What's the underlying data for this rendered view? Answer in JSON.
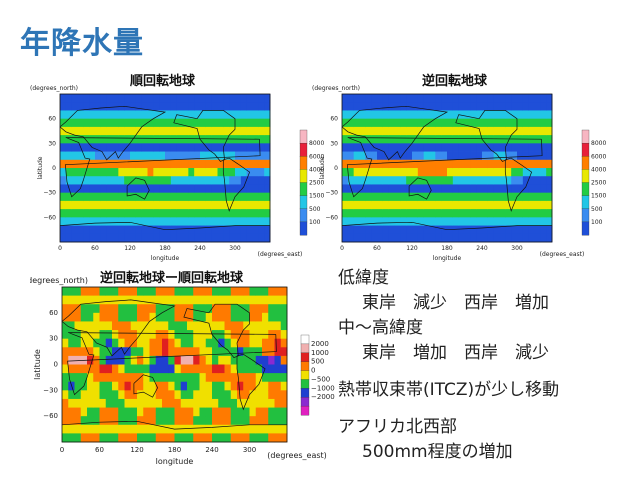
{
  "page": {
    "title": "年降水量"
  },
  "chart_data": [
    {
      "type": "heatmap",
      "title": "順回転地球",
      "xlabel": "longitude",
      "ylabel": "latitude",
      "x_unit": "(degrees_east)",
      "y_unit": "(degrees_north)",
      "xlim": [
        0,
        360
      ],
      "ylim": [
        -90,
        90
      ],
      "x_ticks": [
        "0",
        "60",
        "120",
        "180",
        "240",
        "300"
      ],
      "y_ticks": [
        "60",
        "30",
        "0",
        "−30",
        "−60"
      ],
      "colorbar_labels": [
        "8000",
        "6000",
        "4000",
        "2500",
        "1500",
        "500",
        "100"
      ],
      "colorbar_colors": [
        "#f7b6c2",
        "#e8203a",
        "#ff7f00",
        "#e8e800",
        "#22cc44",
        "#22c6e6",
        "#3a8cf0",
        "#1f4fd8"
      ]
    },
    {
      "type": "heatmap",
      "title": "逆回転地球",
      "xlabel": "longitude",
      "ylabel": "latitude",
      "x_unit": "(degrees_east)",
      "y_unit": "(degrees_north)",
      "xlim": [
        0,
        360
      ],
      "ylim": [
        -90,
        90
      ],
      "x_ticks": [
        "0",
        "60",
        "120",
        "180",
        "240",
        "300"
      ],
      "y_ticks": [
        "60",
        "30",
        "0",
        "−30",
        "−60"
      ],
      "colorbar_labels": [
        "8000",
        "6000",
        "4000",
        "2500",
        "1500",
        "500",
        "100"
      ],
      "colorbar_colors": [
        "#f7b6c2",
        "#e8203a",
        "#ff7f00",
        "#e8e800",
        "#22cc44",
        "#22c6e6",
        "#3a8cf0",
        "#1f4fd8"
      ]
    },
    {
      "type": "heatmap",
      "title": "逆回転地球ー順回転地球",
      "xlabel": "longitude",
      "ylabel": "latitude",
      "x_unit": "(degrees_east)",
      "y_unit": "(degrees_north)",
      "xlim": [
        0,
        360
      ],
      "ylim": [
        -90,
        90
      ],
      "x_ticks": [
        "0",
        "60",
        "120",
        "180",
        "240",
        "300"
      ],
      "y_ticks": [
        "60",
        "30",
        "0",
        "−30",
        "−60"
      ],
      "colorbar_labels": [
        "2000",
        "1000",
        "500",
        "0",
        "−500",
        "−1000",
        "−2000"
      ],
      "colorbar_colors": [
        "#ffffff",
        "#f0b0b0",
        "#e02020",
        "#ff7a00",
        "#f0e000",
        "#22c040",
        "#1f3fd0",
        "#8a2ad0",
        "#e020c0"
      ]
    }
  ],
  "notes": {
    "low_lat": "低緯度",
    "low_lat_detail": "東岸　減少　西岸　増加",
    "mid_lat": "中〜高緯度",
    "mid_lat_detail": "東岸　増加　西岸　減少",
    "itcz": "熱帯収束帯(ITCZ)が少し移動",
    "africa": "アフリカ北西部",
    "africa_detail": "500mm程度の増加"
  }
}
